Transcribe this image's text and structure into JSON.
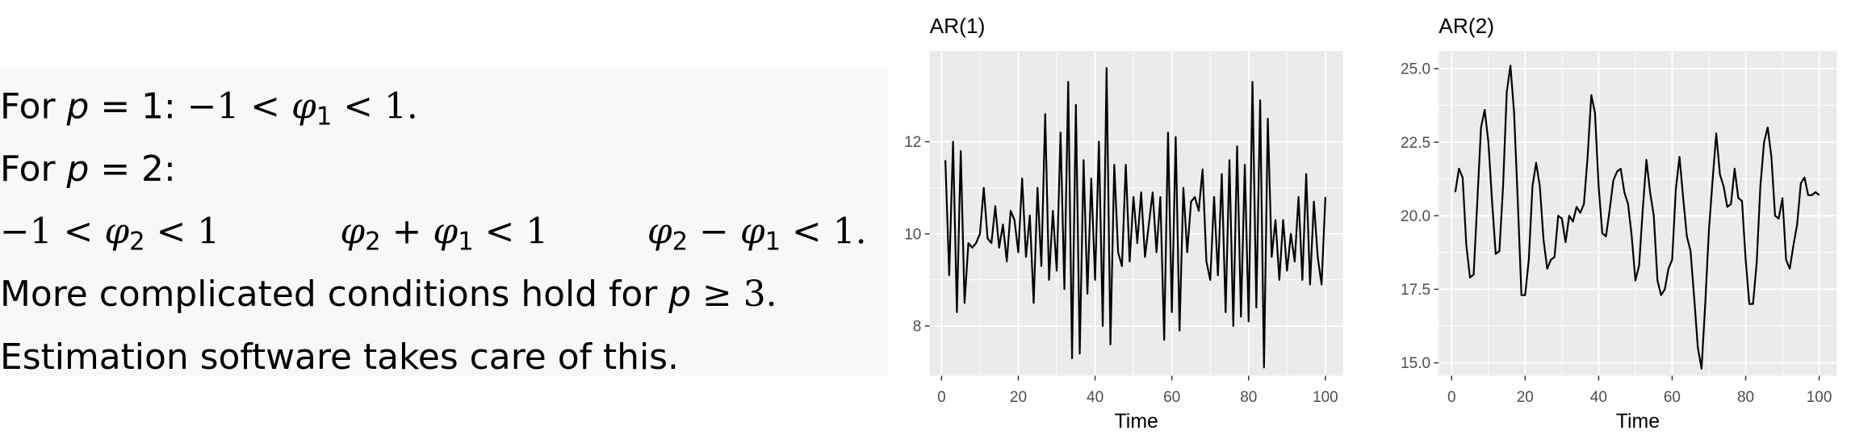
{
  "text": {
    "lines": [
      [
        [
          {
            "text": "For "
          },
          {
            "text": "p",
            "italic": true
          },
          {
            "text": " = 1: "
          },
          {
            "text": "−1 < ",
            "math": true
          },
          {
            "text": "φ",
            "italic": true,
            "math": true
          },
          {
            "text": "1",
            "sub": true
          },
          {
            "text": " < 1.",
            "math": true
          }
        ]
      ],
      [
        [
          {
            "text": "For "
          },
          {
            "text": "p",
            "italic": true
          },
          {
            "text": " = 2:"
          }
        ]
      ],
      [
        [
          {
            "text": "−1 < ",
            "math": true
          },
          {
            "text": "φ",
            "italic": true,
            "math": true
          },
          {
            "text": "2",
            "sub": true
          },
          {
            "text": " < 1",
            "math": true
          }
        ],
        [
          {
            "text": "φ",
            "italic": true,
            "math": true
          },
          {
            "text": "2",
            "sub": true
          },
          {
            "text": " + "
          },
          {
            "text": "φ",
            "italic": true,
            "math": true
          },
          {
            "text": "1",
            "sub": true
          },
          {
            "text": " < 1",
            "math": true
          }
        ],
        [
          {
            "text": "φ",
            "italic": true,
            "math": true
          },
          {
            "text": "2",
            "sub": true
          },
          {
            "text": " − ",
            "math": true
          },
          {
            "text": "φ",
            "italic": true,
            "math": true
          },
          {
            "text": "1",
            "sub": true
          },
          {
            "text": " < 1.",
            "math": true
          }
        ]
      ],
      [
        [
          {
            "text": "More complicated conditions hold for "
          },
          {
            "text": "p",
            "italic": true
          },
          {
            "text": " ≥ 3.",
            "math": true
          }
        ]
      ],
      [
        [
          {
            "text": "Estimation software takes care of this."
          }
        ]
      ]
    ]
  },
  "chart_data": [
    {
      "type": "line",
      "title": "AR(1)",
      "x_label": "Time",
      "color": "#000000",
      "grid": true,
      "xlim": [
        -3.1,
        104.6
      ],
      "xticks": [
        0,
        20,
        40,
        60,
        80,
        100
      ],
      "ylim": [
        6.92,
        13.97
      ],
      "yticks": [
        8,
        10,
        12
      ],
      "x": [
        1,
        2,
        3,
        4,
        5,
        6,
        7,
        8,
        9,
        10,
        11,
        12,
        13,
        14,
        15,
        16,
        17,
        18,
        19,
        20,
        21,
        22,
        23,
        24,
        25,
        26,
        27,
        28,
        29,
        30,
        31,
        32,
        33,
        34,
        35,
        36,
        37,
        38,
        39,
        40,
        41,
        42,
        43,
        44,
        45,
        46,
        47,
        48,
        49,
        50,
        51,
        52,
        53,
        54,
        55,
        56,
        57,
        58,
        59,
        60,
        61,
        62,
        63,
        64,
        65,
        66,
        67,
        68,
        69,
        70,
        71,
        72,
        73,
        74,
        75,
        76,
        77,
        78,
        79,
        80,
        81,
        82,
        83,
        84,
        85,
        86,
        87,
        88,
        89,
        90,
        91,
        92,
        93,
        94,
        95,
        96,
        97,
        98,
        99,
        100
      ],
      "values": [
        11.6,
        9.1,
        12.0,
        8.3,
        11.8,
        8.5,
        9.8,
        9.7,
        9.8,
        10.0,
        11.0,
        9.9,
        9.8,
        10.6,
        9.7,
        10.2,
        9.4,
        10.5,
        10.3,
        9.6,
        11.2,
        9.5,
        10.4,
        8.5,
        11.0,
        9.3,
        12.6,
        9.0,
        10.5,
        9.2,
        12.2,
        8.8,
        13.3,
        7.3,
        12.8,
        7.4,
        11.6,
        8.7,
        11.2,
        9.0,
        12.0,
        8.0,
        13.6,
        7.6,
        11.5,
        9.6,
        9.3,
        11.5,
        9.4,
        10.8,
        9.8,
        10.9,
        9.5,
        10.2,
        10.9,
        9.6,
        10.8,
        7.7,
        12.2,
        8.3,
        12.1,
        7.9,
        11.0,
        9.6,
        10.7,
        10.8,
        10.5,
        11.4,
        9.4,
        9.0,
        10.8,
        9.1,
        11.3,
        8.3,
        11.6,
        8.0,
        11.9,
        8.2,
        11.5,
        8.1,
        13.3,
        8.4,
        12.9,
        7.1,
        12.5,
        9.5,
        10.3,
        9.0,
        10.3,
        9.2,
        10.0,
        9.4,
        10.8,
        9.0,
        11.3,
        8.9,
        10.7,
        9.5,
        8.9,
        10.8
      ]
    },
    {
      "type": "line",
      "title": "AR(2)",
      "x_label": "Time",
      "color": "#000000",
      "grid": true,
      "xlim": [
        -3.5,
        104.8
      ],
      "xticks": [
        0,
        20,
        40,
        60,
        80,
        100
      ],
      "ylim": [
        14.56,
        25.6
      ],
      "yticks": [
        {
          "value": 15,
          "label": "15.0"
        },
        17.5,
        {
          "value": 20,
          "label": "20.0"
        },
        22.5,
        {
          "value": 25,
          "label": "25.0"
        }
      ],
      "x": [
        1,
        2,
        3,
        4,
        5,
        6,
        7,
        8,
        9,
        10,
        11,
        12,
        13,
        14,
        15,
        16,
        17,
        18,
        19,
        20,
        21,
        22,
        23,
        24,
        25,
        26,
        27,
        28,
        29,
        30,
        31,
        32,
        33,
        34,
        35,
        36,
        37,
        38,
        39,
        40,
        41,
        42,
        43,
        44,
        45,
        46,
        47,
        48,
        49,
        50,
        51,
        52,
        53,
        54,
        55,
        56,
        57,
        58,
        59,
        60,
        61,
        62,
        63,
        64,
        65,
        66,
        67,
        68,
        69,
        70,
        71,
        72,
        73,
        74,
        75,
        76,
        77,
        78,
        79,
        80,
        81,
        82,
        83,
        84,
        85,
        86,
        87,
        88,
        89,
        90,
        91,
        92,
        93,
        94,
        95,
        96,
        97,
        98,
        99,
        100
      ],
      "values": [
        20.8,
        21.6,
        21.3,
        19.0,
        17.9,
        18.0,
        20.5,
        23.0,
        23.6,
        22.5,
        20.5,
        18.7,
        18.8,
        21.0,
        24.2,
        25.1,
        23.5,
        20.5,
        17.3,
        17.3,
        18.5,
        21.0,
        21.8,
        21.0,
        19.2,
        18.2,
        18.5,
        18.6,
        20.0,
        19.9,
        19.1,
        20.0,
        19.8,
        20.3,
        20.1,
        20.4,
        22.0,
        24.1,
        23.5,
        21.0,
        19.4,
        19.3,
        20.2,
        21.2,
        21.5,
        21.6,
        20.8,
        20.4,
        19.3,
        17.8,
        18.3,
        20.2,
        21.9,
        20.8,
        20.0,
        17.8,
        17.3,
        17.5,
        18.2,
        18.5,
        20.9,
        22.0,
        20.6,
        19.3,
        18.8,
        17.2,
        15.5,
        14.8,
        17.0,
        19.5,
        21.2,
        22.8,
        21.4,
        21.0,
        20.3,
        20.4,
        21.6,
        20.6,
        20.5,
        18.5,
        17.0,
        17.0,
        18.4,
        21.0,
        22.5,
        23.0,
        22.0,
        20.0,
        19.9,
        20.6,
        18.5,
        18.2,
        19.0,
        19.7,
        21.1,
        21.3,
        20.7,
        20.7,
        20.8,
        20.7
      ]
    }
  ]
}
